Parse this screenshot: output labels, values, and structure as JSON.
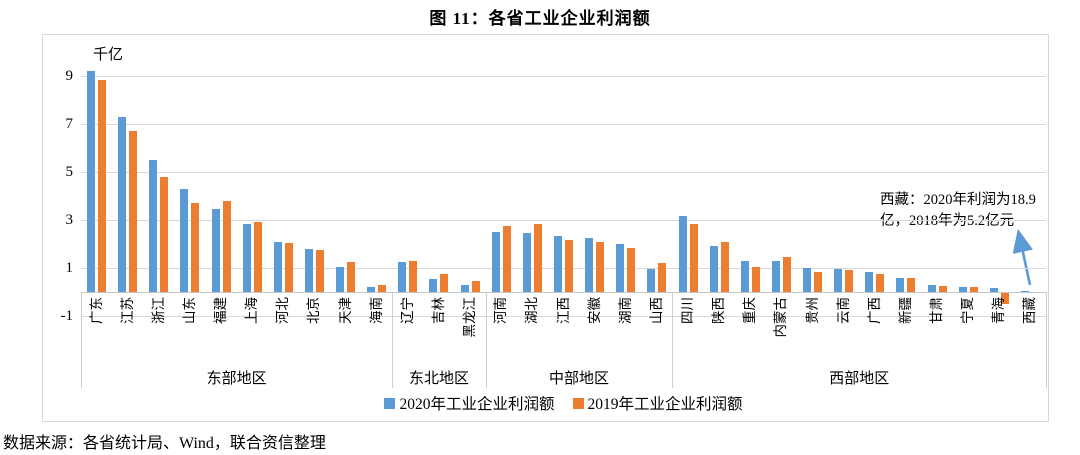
{
  "title": "图 11：各省工业企业利润额",
  "footer": "数据来源：各省统计局、Wind，联合资信整理",
  "annotation": {
    "line1": "西藏：2020年利润为18.9",
    "line2": "亿，2018年为5.2亿元"
  },
  "colors": {
    "series2020": "#5B9BD5",
    "series2019": "#ED7D31",
    "gridline": "#D9D9D9",
    "arrow": "#5B9BD5"
  },
  "chart_data": {
    "type": "bar",
    "title": "图 11：各省工业企业利润额",
    "unit": "千亿",
    "ylabel": "千亿",
    "yticks": [
      9,
      7,
      5,
      3,
      1,
      -1
    ],
    "ylim": [
      -1.2,
      9.6
    ],
    "grid": true,
    "legend_position": "bottom",
    "annotation": "西藏：2020年利润为18.9亿，2018年为5.2亿元",
    "series": [
      {
        "name": "2020年工业企业利润额",
        "color": "#5B9BD5"
      },
      {
        "name": "2019年工业企业利润额",
        "color": "#ED7D31"
      }
    ],
    "groups": [
      {
        "region": "东部地区",
        "provinces": [
          "广东",
          "江苏",
          "浙江",
          "山东",
          "福建",
          "上海",
          "河北",
          "北京",
          "天津",
          "海南"
        ],
        "values_2020": [
          9.2,
          7.3,
          5.5,
          4.3,
          3.45,
          2.85,
          2.1,
          1.8,
          1.05,
          0.2
        ],
        "values_2019": [
          8.85,
          6.7,
          4.8,
          3.7,
          3.8,
          2.9,
          2.05,
          1.75,
          1.25,
          0.3
        ]
      },
      {
        "region": "东北地区",
        "provinces": [
          "辽宁",
          "吉林",
          "黑龙江"
        ],
        "values_2020": [
          1.25,
          0.55,
          0.3
        ],
        "values_2019": [
          1.3,
          0.75,
          0.45
        ]
      },
      {
        "region": "中部地区",
        "provinces": [
          "河南",
          "湖北",
          "江西",
          "安徽",
          "湖南",
          "山西"
        ],
        "values_2020": [
          2.5,
          2.45,
          2.35,
          2.25,
          2.0,
          0.95
        ],
        "values_2019": [
          2.75,
          2.85,
          2.15,
          2.1,
          1.85,
          1.2
        ]
      },
      {
        "region": "西部地区",
        "provinces": [
          "四川",
          "陕西",
          "重庆",
          "内蒙古",
          "贵州",
          "云南",
          "广西",
          "新疆",
          "甘肃",
          "宁夏",
          "青海",
          "西藏"
        ],
        "values_2020": [
          3.15,
          1.9,
          1.3,
          1.3,
          1.0,
          0.95,
          0.85,
          0.6,
          0.3,
          0.22,
          0.15,
          0.02
        ],
        "values_2019": [
          2.85,
          2.1,
          1.05,
          1.45,
          0.85,
          0.9,
          0.75,
          0.6,
          0.25,
          0.2,
          -0.45,
          0
        ]
      }
    ]
  }
}
